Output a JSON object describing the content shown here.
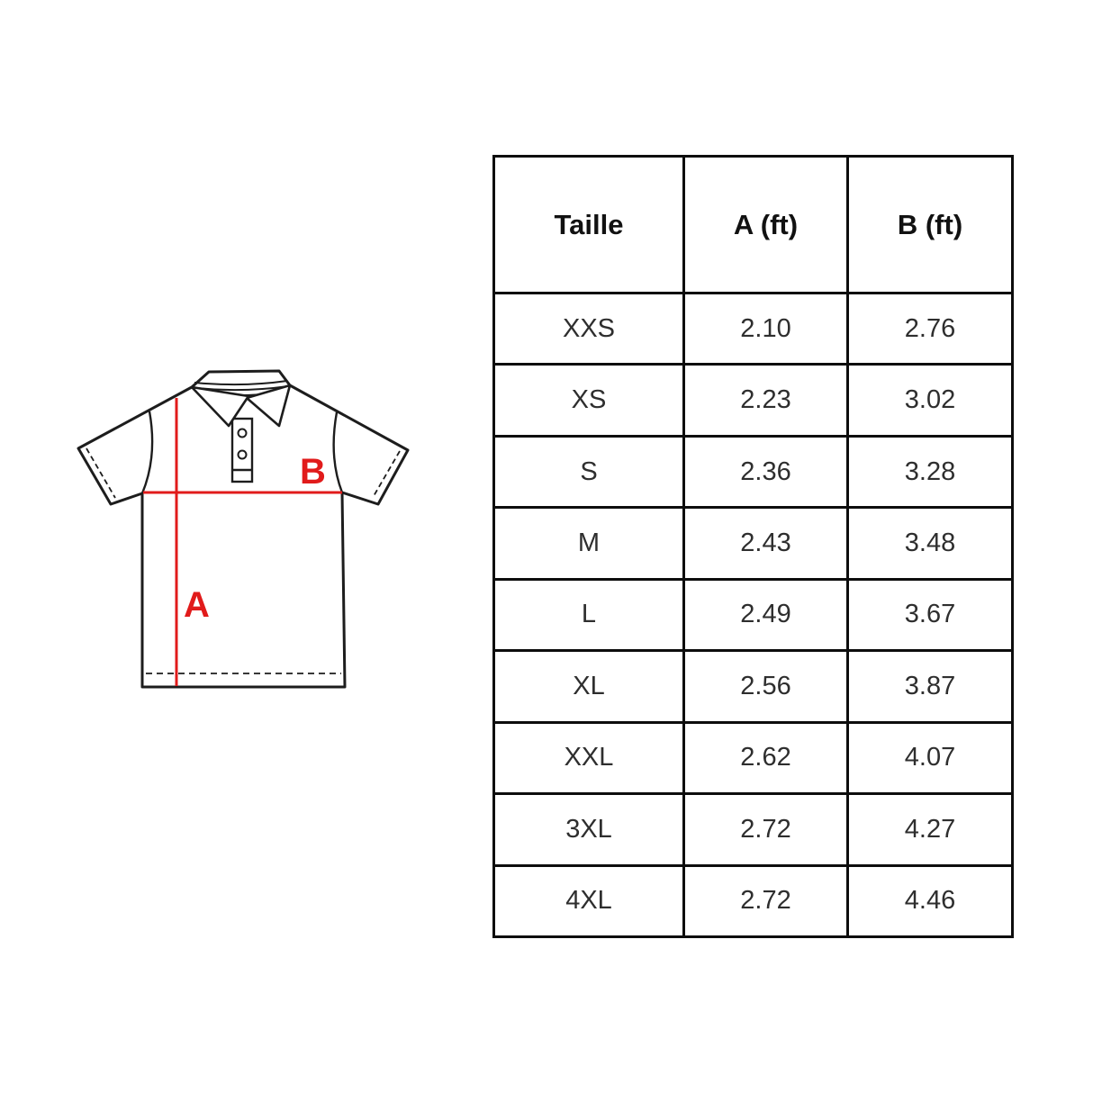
{
  "page": {
    "background_color": "#ffffff"
  },
  "diagram": {
    "label_a": "A",
    "label_b": "B",
    "accent_color": "#e11b1b",
    "outline_color": "#1d1d1d"
  },
  "table": {
    "headers": [
      "Taille",
      "A (ft)",
      "B (ft)"
    ],
    "rows": [
      [
        "XXS",
        "2.10",
        "2.76"
      ],
      [
        "XS",
        "2.23",
        "3.02"
      ],
      [
        "S",
        "2.36",
        "3.28"
      ],
      [
        "M",
        "2.43",
        "3.48"
      ],
      [
        "L",
        "2.49",
        "3.67"
      ],
      [
        "XL",
        "2.56",
        "3.87"
      ],
      [
        "XXL",
        "2.62",
        "4.07"
      ],
      [
        "3XL",
        "2.72",
        "4.27"
      ],
      [
        "4XL",
        "2.72",
        "4.46"
      ]
    ]
  }
}
